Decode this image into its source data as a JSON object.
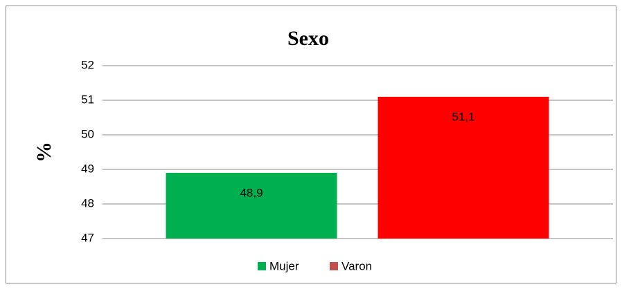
{
  "chart_data": {
    "type": "bar",
    "title": "Sexo",
    "y_label": "%",
    "categories": [
      "Mujer",
      "Varon"
    ],
    "values": [
      48.9,
      51.1
    ],
    "value_labels": [
      "48,9",
      "51,1"
    ],
    "colors": [
      "#00b050",
      "#ff0000"
    ],
    "legend_colors": [
      "#00b050",
      "#c0504d"
    ],
    "ylim": [
      47,
      52
    ],
    "yticks": [
      47,
      48,
      49,
      50,
      51,
      52
    ],
    "grid": true,
    "legend": "bottom"
  }
}
